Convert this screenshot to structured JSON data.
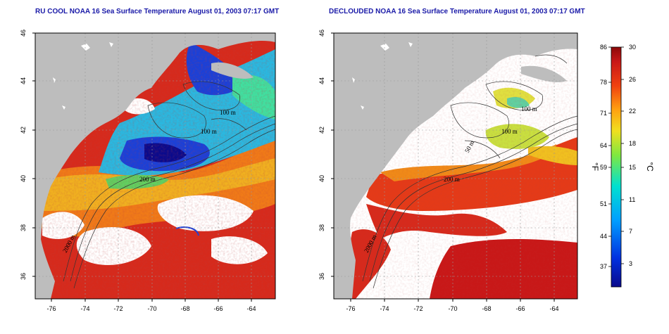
{
  "panels": [
    {
      "id": "left",
      "title": "RU COOL NOAA 16 Sea Surface Temperature August 01, 2003 07:17 GMT"
    },
    {
      "id": "right",
      "title": "DECLOUDED NOAA 16 Sea Surface Temperature August 01, 2003 07:17 GMT"
    }
  ],
  "map_axes": {
    "lon_ticks": [
      "-76",
      "-74",
      "-72",
      "-70",
      "-68",
      "-66",
      "-64"
    ],
    "lat_ticks": [
      "46",
      "44",
      "42",
      "40",
      "38",
      "36"
    ]
  },
  "contour_labels": [
    "100 m",
    "100 m",
    "200 m",
    "200 m",
    "2000 m",
    "50 m"
  ],
  "colorbar": {
    "fahrenheit_ticks": [
      "86",
      "78",
      "71",
      "64",
      "59",
      "51",
      "44",
      "37"
    ],
    "celsius_ticks": [
      "30",
      "26",
      "22",
      "18",
      "15",
      "11",
      "7",
      "3"
    ],
    "fahrenheit_unit": "°F",
    "celsius_unit": "°C"
  },
  "colors": {
    "land": "#bdbdbd",
    "cloud": "#ffffff",
    "warm": "#d42020",
    "cool": "#1a40d8",
    "title": "#1a1aa8"
  }
}
